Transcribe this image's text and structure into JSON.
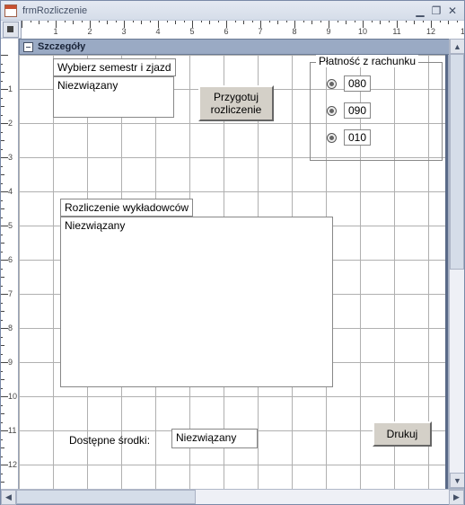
{
  "window": {
    "title": "frmRozliczenie"
  },
  "section": {
    "header": "Szczegóły"
  },
  "controls": {
    "semester_label": "Wybierz semestr i zjazd",
    "semester_field": "Niezwiązany",
    "prepare_btn_line1": "Przygotuj",
    "prepare_btn_line2": "rozliczenie",
    "payment_group": {
      "label": "Płatność z rachunku",
      "options": [
        "080",
        "090",
        "010"
      ]
    },
    "lecturers_label": "Rozliczenie wykładowców",
    "lecturers_field": "Niezwiązany",
    "funds_label": "Dostępne środki:",
    "funds_field": "Niezwiązany",
    "print_btn": "Drukuj"
  },
  "ruler_units": 12,
  "colors": {
    "grid": "#b0b0b0",
    "section_header": "#9aaac4",
    "button_face": "#d4d0c8",
    "canvas_edge": "#5a6a88"
  }
}
